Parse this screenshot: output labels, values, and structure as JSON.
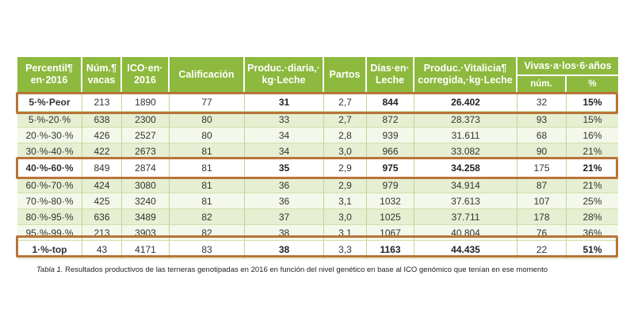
{
  "headers": {
    "percentil": "Percentil¶ en·2016",
    "num_vacas": "Núm.¶ vacas",
    "ico": "ICO·en· 2016",
    "calificacion": "Calificación",
    "produc_diaria": "Produc.·diaria,· kg·Leche",
    "partos": "Partos",
    "dias": "Días·en· Leche",
    "produc_vitalicia": "Produc.·Vitalicia¶ corregida,·kg·Leche",
    "vivas": "Vivas·a·los·6·años",
    "vivas_num": "núm.",
    "vivas_pct": "%"
  },
  "rows": [
    {
      "percentil": "5·%·Peor",
      "num": "213",
      "ico": "1890",
      "cal": "77",
      "diaria": "31",
      "partos": "2,7",
      "dias": "844",
      "vitalicia": "26.402",
      "vivas_num": "32",
      "vivas_pct": "15%"
    },
    {
      "percentil": "5·%-20·%",
      "num": "638",
      "ico": "2300",
      "cal": "80",
      "diaria": "33",
      "partos": "2,7",
      "dias": "872",
      "vitalicia": "28.373",
      "vivas_num": "93",
      "vivas_pct": "15%"
    },
    {
      "percentil": "20·%-30·%",
      "num": "426",
      "ico": "2527",
      "cal": "80",
      "diaria": "34",
      "partos": "2,8",
      "dias": "939",
      "vitalicia": "31.611",
      "vivas_num": "68",
      "vivas_pct": "16%"
    },
    {
      "percentil": "30·%-40·%",
      "num": "422",
      "ico": "2673",
      "cal": "81",
      "diaria": "34",
      "partos": "3,0",
      "dias": "966",
      "vitalicia": "33.082",
      "vivas_num": "90",
      "vivas_pct": "21%"
    },
    {
      "percentil": "40·%-60·%",
      "num": "849",
      "ico": "2874",
      "cal": "81",
      "diaria": "35",
      "partos": "2,9",
      "dias": "975",
      "vitalicia": "34.258",
      "vivas_num": "175",
      "vivas_pct": "21%"
    },
    {
      "percentil": "60·%-70·%",
      "num": "424",
      "ico": "3080",
      "cal": "81",
      "diaria": "36",
      "partos": "2,9",
      "dias": "979",
      "vitalicia": "34.914",
      "vivas_num": "87",
      "vivas_pct": "21%"
    },
    {
      "percentil": "70·%-80·%",
      "num": "425",
      "ico": "3240",
      "cal": "81",
      "diaria": "36",
      "partos": "3,1",
      "dias": "1032",
      "vitalicia": "37.613",
      "vivas_num": "107",
      "vivas_pct": "25%"
    },
    {
      "percentil": "80·%-95·%",
      "num": "636",
      "ico": "3489",
      "cal": "82",
      "diaria": "37",
      "partos": "3,0",
      "dias": "1025",
      "vitalicia": "37.711",
      "vivas_num": "178",
      "vivas_pct": "28%"
    },
    {
      "percentil": "95·%-99·%",
      "num": "213",
      "ico": "3903",
      "cal": "82",
      "diaria": "38",
      "partos": "3,1",
      "dias": "1067",
      "vitalicia": "40.804",
      "vivas_num": "76",
      "vivas_pct": "36%"
    },
    {
      "percentil": "1·%-top",
      "num": "43",
      "ico": "4171",
      "cal": "83",
      "diaria": "38",
      "partos": "3,3",
      "dias": "1163",
      "vitalicia": "44.435",
      "vivas_num": "22",
      "vivas_pct": "51%"
    }
  ],
  "caption": {
    "label": "Tabla 1.",
    "text": "Resultados productivos de las terneras genotipadas en 2016 en función del nivel genético en base al ICO genómico que tenían en ese momento"
  },
  "colors": {
    "header_green": "#8db93e",
    "highlight_frame": "#b87438"
  }
}
